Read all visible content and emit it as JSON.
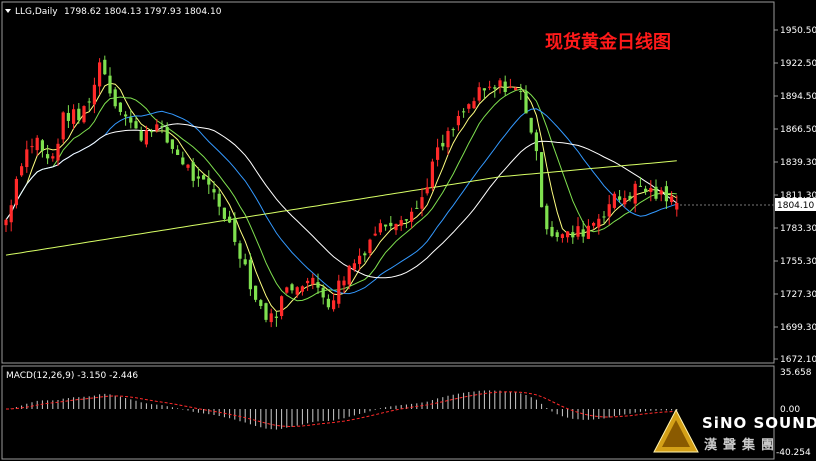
{
  "main_header": {
    "symbol_text": "LLG,Daily",
    "ohlc_text": "1798.62 1804.13 1797.93 1804.10"
  },
  "chart_title": "现货黄金日线图",
  "price_axis": {
    "ticks": [
      "1950.50",
      "1922.50",
      "1894.50",
      "1866.50",
      "1839.30",
      "1811.30",
      "1783.30",
      "1755.30",
      "1727.30",
      "1699.30",
      "1672.10"
    ],
    "current_price": "1804.10"
  },
  "macd_panel": {
    "header_text": "MACD(12,26,9) -3.150 -2.446",
    "ticks": [
      "35.658",
      "0.00",
      "-40.254"
    ]
  },
  "logo": {
    "brand_text": "SiNO SOUND",
    "chinese_text": "漢聲集團"
  },
  "colors": {
    "background": "#000000",
    "bull_candle": "#ff2a2a",
    "bear_candle": "#7fe04f",
    "title": "#ff1a1a",
    "ma_fast": "#ffff80",
    "ma_mid": "#7fe04f",
    "ma_slow": "#3399ff",
    "ma_long": "#ffffff",
    "ma_longest": "#d8ff66",
    "macd_signal": "#ff2a2a",
    "macd_hist": "#cccccc"
  },
  "icons": {
    "header_marker": "triangle-down-icon"
  }
}
